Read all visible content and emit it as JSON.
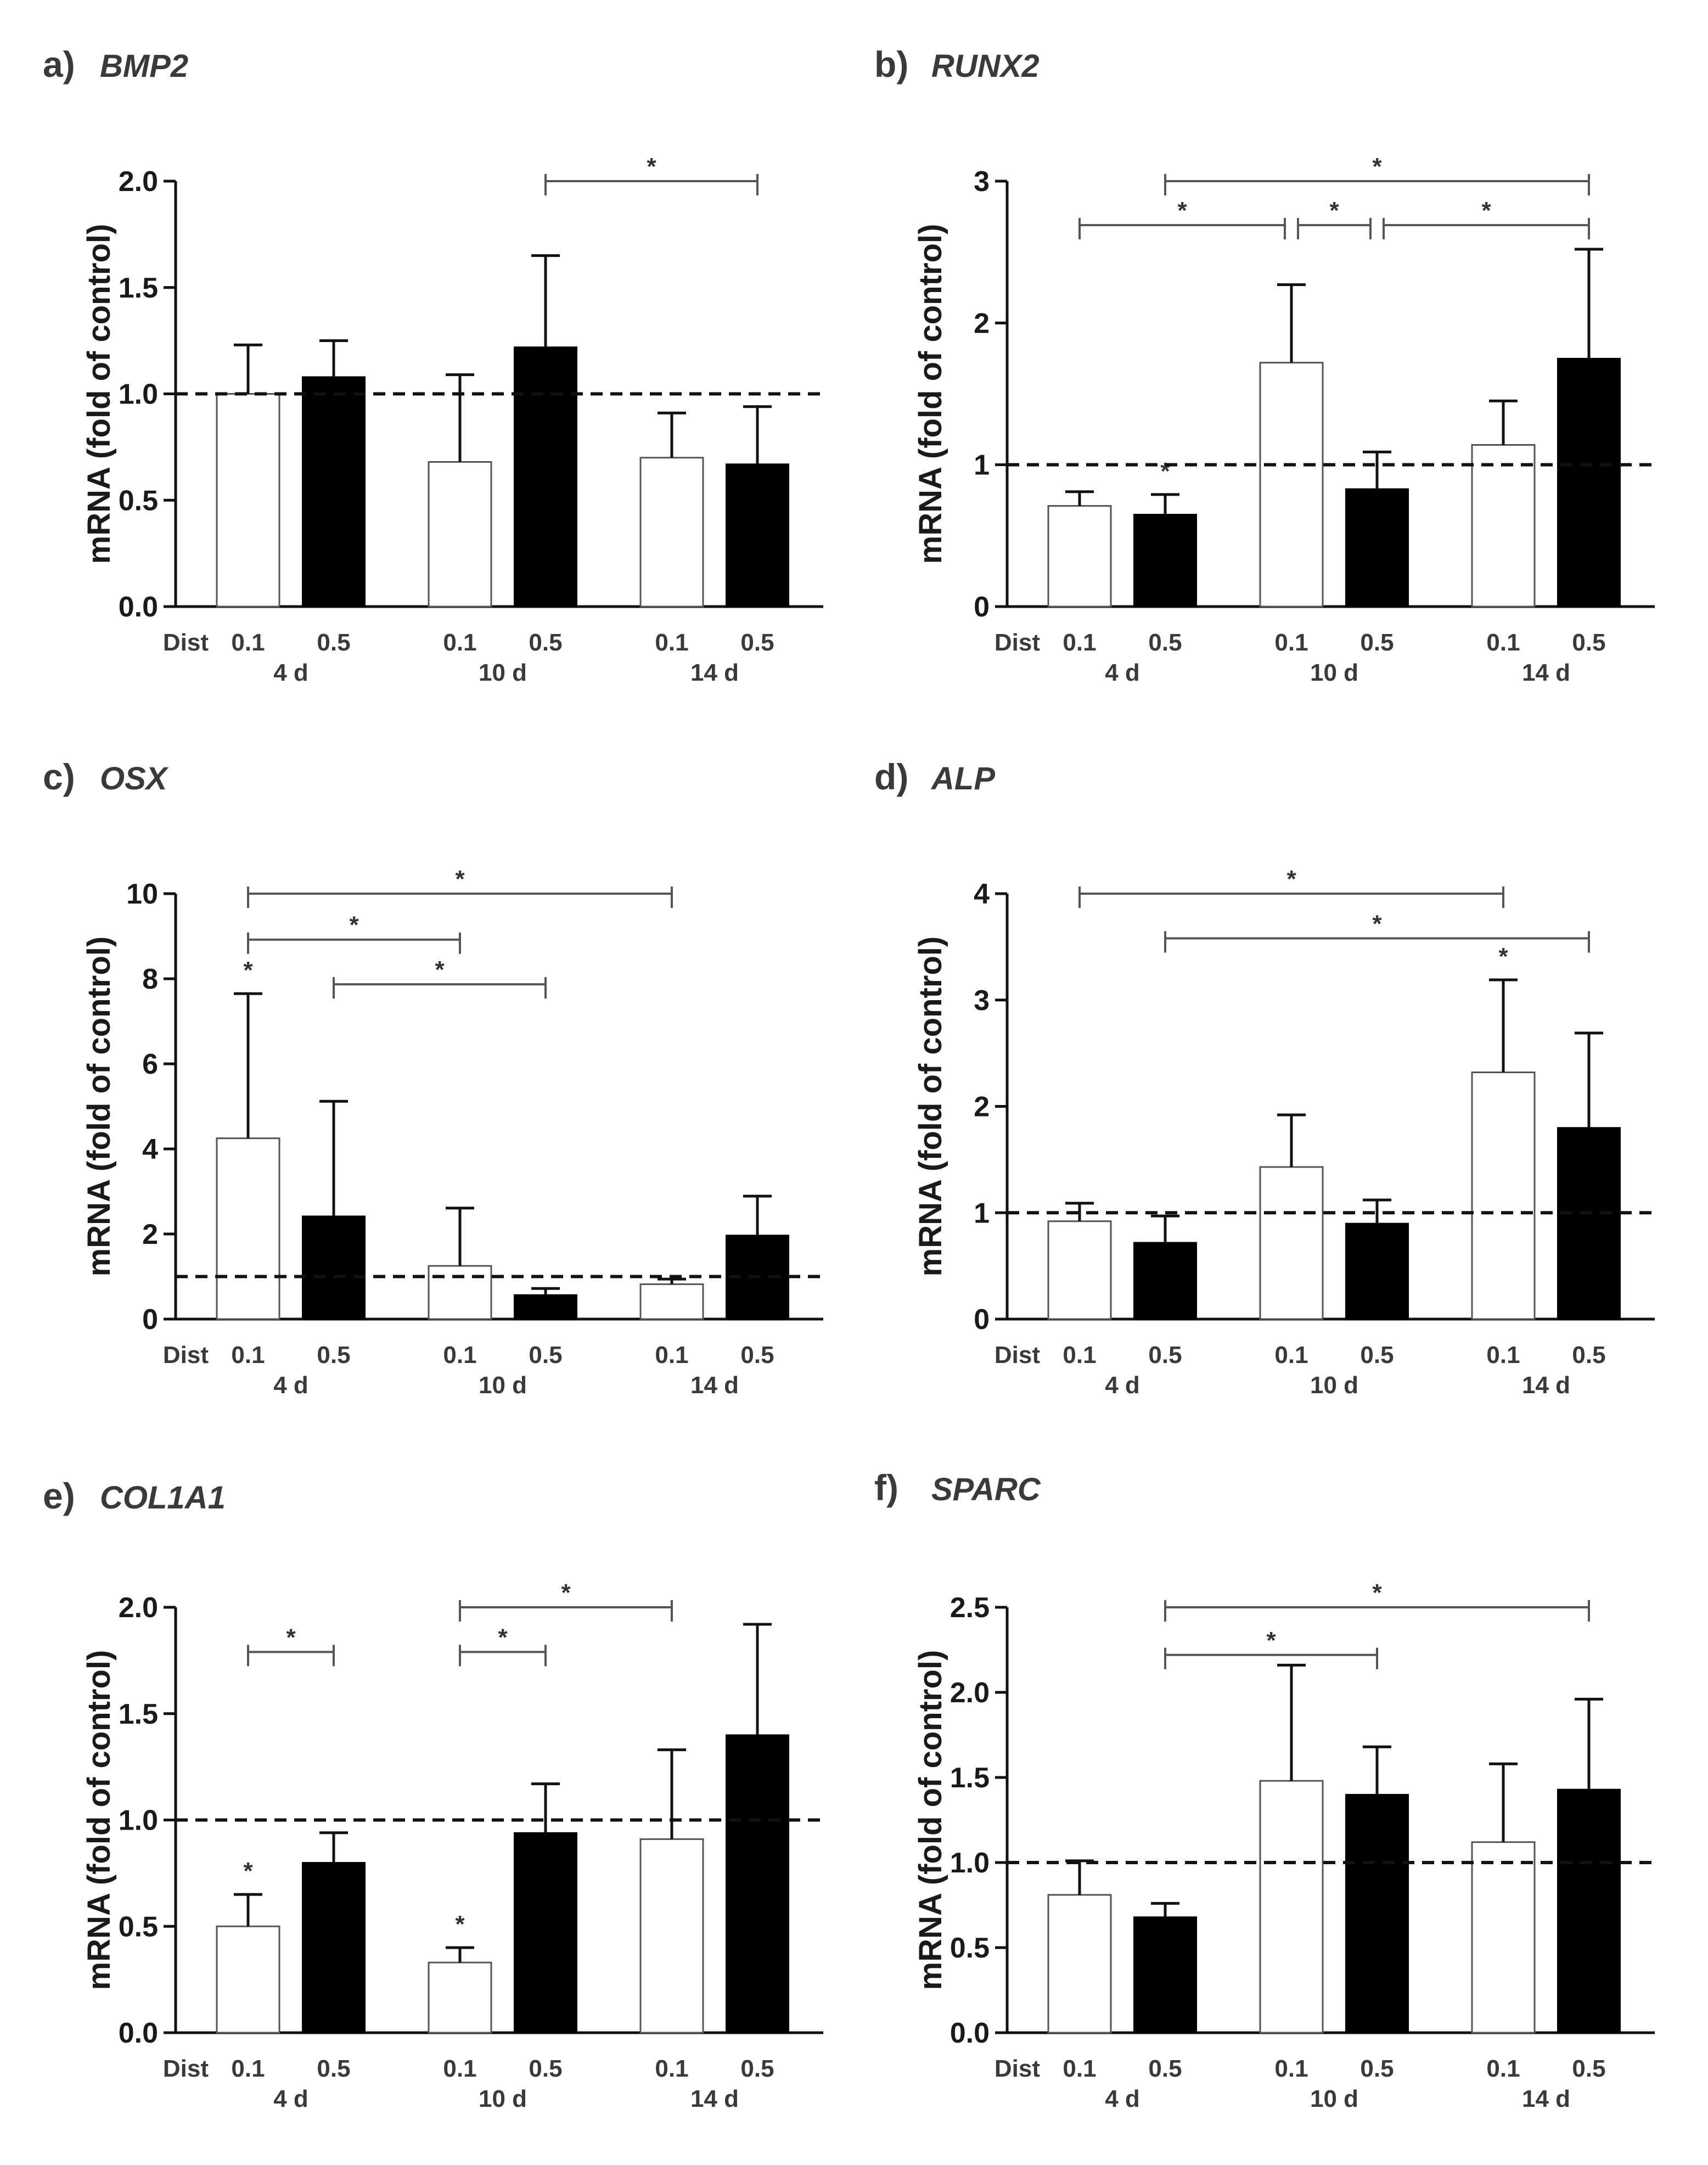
{
  "colors": {
    "bar_0_1": "#ffffff",
    "bar_0_5": "#000000",
    "axis": "#111111",
    "bracket": "#555555"
  },
  "chart_data": [
    {
      "type": "bar",
      "label": "a)",
      "title": "BMP2",
      "ylabel": "mRNA (fold of control)",
      "ylim": [
        0,
        2.0
      ],
      "yticks": [
        "0.0",
        "0.5",
        "1.0",
        "1.5",
        "2.0"
      ],
      "xlabel": "Dist",
      "groups": [
        "4 d",
        "10 d",
        "14 d"
      ],
      "distances": [
        "0.1",
        "0.5"
      ],
      "values": [
        1.0,
        1.08,
        0.68,
        1.22,
        0.7,
        0.67
      ],
      "errors": [
        0.23,
        0.17,
        0.41,
        0.43,
        0.21,
        0.27
      ],
      "reference_line": 1.0,
      "bar_stars": [
        "",
        "",
        "",
        "",
        "",
        ""
      ],
      "brackets": [
        {
          "from": 3,
          "to": 5,
          "level": 2.0,
          "label": "*"
        }
      ]
    },
    {
      "type": "bar",
      "label": "b)",
      "title": "RUNX2",
      "ylabel": "mRNA (fold of control)",
      "ylim": [
        0,
        3
      ],
      "yticks": [
        "0",
        "1",
        "2",
        "3"
      ],
      "xlabel": "Dist",
      "groups": [
        "4 d",
        "10 d",
        "14 d"
      ],
      "distances": [
        "0.1",
        "0.5"
      ],
      "values": [
        0.71,
        0.65,
        1.72,
        0.83,
        1.14,
        1.75
      ],
      "errors": [
        0.1,
        0.14,
        0.55,
        0.26,
        0.31,
        0.77
      ],
      "reference_line": 1.0,
      "bar_stars": [
        "",
        "*",
        "",
        "",
        "",
        ""
      ],
      "brackets": [
        {
          "from": 1,
          "to": 5,
          "level": 3.0,
          "label": "*"
        },
        {
          "from": 0,
          "to": 2,
          "level": 2.69,
          "label": "*"
        },
        {
          "from": 2,
          "to": 3,
          "level": 2.69,
          "label": "*"
        },
        {
          "from": 3,
          "to": 5,
          "level": 2.69,
          "label": "*"
        }
      ]
    },
    {
      "type": "bar",
      "label": "c)",
      "title": "OSX",
      "ylabel": "mRNA (fold of control)",
      "ylim": [
        0,
        10
      ],
      "yticks": [
        "0",
        "2",
        "4",
        "6",
        "8",
        "10"
      ],
      "xlabel": "Dist",
      "groups": [
        "4 d",
        "10 d",
        "14 d"
      ],
      "distances": [
        "0.1",
        "0.5"
      ],
      "values": [
        4.25,
        2.42,
        1.25,
        0.57,
        0.82,
        1.97
      ],
      "errors": [
        3.4,
        2.7,
        1.36,
        0.15,
        0.12,
        0.92
      ],
      "reference_line": 1.0,
      "bar_stars": [
        "*",
        "",
        "",
        "",
        "",
        ""
      ],
      "brackets": [
        {
          "from": 0,
          "to": 4,
          "level": 10.0,
          "label": "*"
        },
        {
          "from": 0,
          "to": 2,
          "level": 8.92,
          "label": "*"
        },
        {
          "from": 1,
          "to": 3,
          "level": 7.87,
          "label": "*"
        }
      ]
    },
    {
      "type": "bar",
      "label": "d)",
      "title": "ALP",
      "ylabel": "mRNA (fold of control)",
      "ylim": [
        0,
        4
      ],
      "yticks": [
        "0",
        "1",
        "2",
        "3",
        "4"
      ],
      "xlabel": "Dist",
      "groups": [
        "4 d",
        "10 d",
        "14 d"
      ],
      "distances": [
        "0.1",
        "0.5"
      ],
      "values": [
        0.92,
        0.72,
        1.43,
        0.9,
        2.32,
        1.8
      ],
      "errors": [
        0.17,
        0.25,
        0.49,
        0.22,
        0.87,
        0.89
      ],
      "reference_line": 1.0,
      "bar_stars": [
        "",
        "",
        "",
        "",
        "*",
        ""
      ],
      "brackets": [
        {
          "from": 0,
          "to": 4,
          "level": 4.0,
          "label": "*"
        },
        {
          "from": 1,
          "to": 5,
          "level": 3.58,
          "label": "*"
        }
      ]
    },
    {
      "type": "bar",
      "label": "e)",
      "title": "COL1A1",
      "ylabel": "mRNA (fold of control)",
      "ylim": [
        0,
        2.0
      ],
      "yticks": [
        "0.0",
        "0.5",
        "1.0",
        "1.5",
        "2.0"
      ],
      "xlabel": "Dist",
      "groups": [
        "4 d",
        "10 d",
        "14 d"
      ],
      "distances": [
        "0.1",
        "0.5"
      ],
      "values": [
        0.5,
        0.8,
        0.33,
        0.94,
        0.91,
        1.4
      ],
      "errors": [
        0.15,
        0.14,
        0.07,
        0.23,
        0.42,
        0.52
      ],
      "reference_line": 1.0,
      "bar_stars": [
        "*",
        "",
        "*",
        "",
        "",
        ""
      ],
      "brackets": [
        {
          "from": 2,
          "to": 4,
          "level": 2.0,
          "label": "*"
        },
        {
          "from": 0,
          "to": 1,
          "level": 1.79,
          "label": "*"
        },
        {
          "from": 2,
          "to": 3,
          "level": 1.79,
          "label": "*"
        }
      ]
    },
    {
      "type": "bar",
      "label": "f)",
      "title": "SPARC",
      "ylabel": "mRNA (fold of control)",
      "ylim": [
        0,
        2.5
      ],
      "yticks": [
        "0.0",
        "0.5",
        "1.0",
        "1.5",
        "2.0",
        "2.5"
      ],
      "xlabel": "Dist",
      "groups": [
        "4 d",
        "10 d",
        "14 d"
      ],
      "distances": [
        "0.1",
        "0.5"
      ],
      "values": [
        0.81,
        0.68,
        1.48,
        1.4,
        1.12,
        1.43
      ],
      "errors": [
        0.2,
        0.08,
        0.68,
        0.28,
        0.46,
        0.53
      ],
      "reference_line": 1.0,
      "bar_stars": [
        "",
        "",
        "",
        "",
        "",
        ""
      ],
      "brackets": [
        {
          "from": 1,
          "to": 5,
          "level": 2.5,
          "label": "*"
        },
        {
          "from": 1,
          "to": 3,
          "level": 2.22,
          "label": "*"
        }
      ]
    }
  ]
}
